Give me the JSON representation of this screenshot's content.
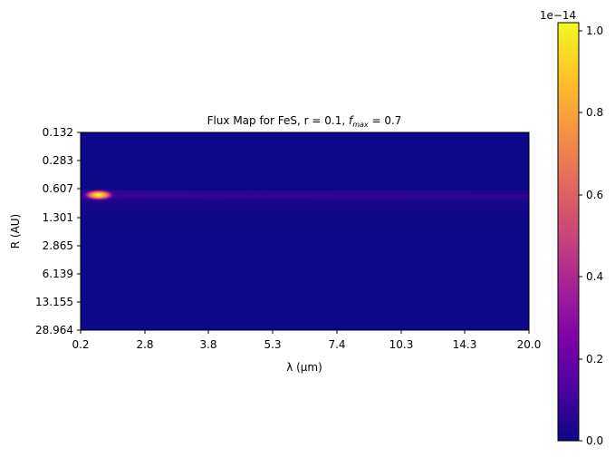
{
  "chart_data": {
    "type": "heatmap",
    "title": "Flux Map for FeS, r = 0.1, ",
    "title_fmax_symbol": "f",
    "title_fmax_subscript": "max",
    "title_fmax_value": " = 0.7",
    "xlabel": "λ (μm)",
    "ylabel": "R (AU)",
    "x_ticks": [
      "0.2",
      "2.8",
      "3.8",
      "5.3",
      "7.4",
      "10.3",
      "14.3",
      "20.0"
    ],
    "y_ticks": [
      "0.132",
      "0.283",
      "0.607",
      "1.301",
      "2.865",
      "6.139",
      "13.155",
      "28.964"
    ],
    "colorbar": {
      "colormap": "plasma",
      "scale_label": "1e−14",
      "range": [
        0,
        1.02
      ],
      "ticks": [
        "0.0",
        "0.2",
        "0.4",
        "0.6",
        "0.8",
        "1.0"
      ]
    },
    "background_value": 0.0,
    "features": [
      {
        "kind": "peak",
        "wavelength_um": 1.0,
        "radius_au": 0.61,
        "value": 1.0
      },
      {
        "kind": "band",
        "radius_au": 0.61,
        "wavelength_range_um": [
          2.8,
          20.0
        ],
        "value": 0.12
      },
      {
        "kind": "faint-band",
        "radius_au": 1.1,
        "wavelength_range_um": [
          0.2,
          20.0
        ],
        "value": 0.05
      }
    ]
  }
}
